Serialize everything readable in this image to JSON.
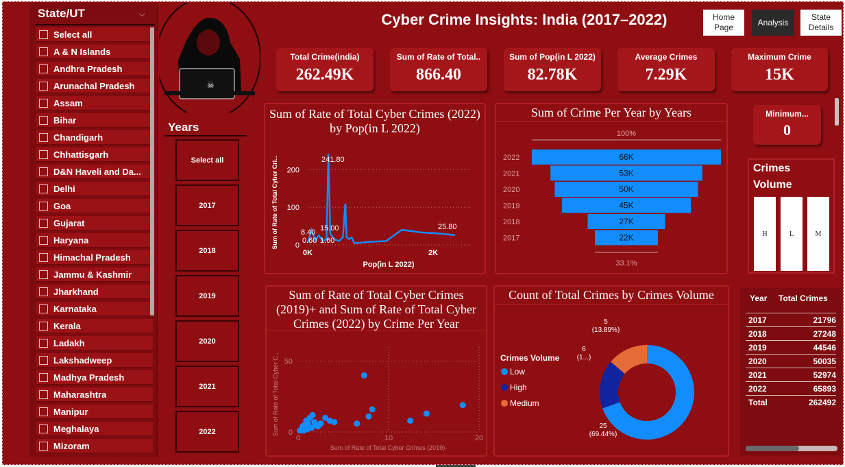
{
  "page": {
    "title": "Cyber Crime Insights: India (2017–2022)"
  },
  "nav": {
    "home": "Home Page",
    "analysis": "Analysis",
    "state_details": "State Details"
  },
  "state_slicer": {
    "title": "State/UT",
    "items": [
      "Select all",
      "A & N Islands",
      "Andhra Pradesh",
      "Arunachal Pradesh",
      "Assam",
      "Bihar",
      "Chandigarh",
      "Chhattisgarh",
      "D&N Haveli and Da...",
      "Delhi",
      "Goa",
      "Gujarat",
      "Haryana",
      "Himachal Pradesh",
      "Jammu & Kashmir",
      "Jharkhand",
      "Karnataka",
      "Kerala",
      "Ladakh",
      "Lakshadweep",
      "Madhya Pradesh",
      "Maharashtra",
      "Manipur",
      "Meghalaya",
      "Mizoram"
    ]
  },
  "year_slicer": {
    "title": "Years",
    "items": [
      "Select all",
      "2017",
      "2018",
      "2019",
      "2020",
      "2021",
      "2022"
    ]
  },
  "kpis": [
    {
      "label": "Total Crime(india)",
      "value": "262.49K"
    },
    {
      "label": "Sum of Rate of Total..",
      "value": "866.40"
    },
    {
      "label": "Sum of Pop(in L 2022)",
      "value": "82.78K"
    },
    {
      "label": "Average Crimes",
      "value": "7.29K"
    },
    {
      "label": "Maximum Crime",
      "value": "15K"
    }
  ],
  "min_kpi": {
    "label": "Minimum...",
    "value": "0"
  },
  "volume_card": {
    "title_line1": "Crimes",
    "title_line2": "Volume",
    "buttons": [
      "H",
      "L",
      "M"
    ]
  },
  "chart_data": [
    {
      "type": "line",
      "title": "Sum of Rate of Total Cyber Crimes (2022) by Pop(in L 2022)",
      "xlabel": "Pop(in L 2022)",
      "ylabel": "Sum of Rate of Total Cyber Cri...",
      "x_ticks": [
        "0K",
        "2K"
      ],
      "y_ticks": [
        "0",
        "100",
        "200"
      ],
      "xlim": [
        0,
        2600
      ],
      "ylim": [
        0,
        250
      ],
      "series": [
        {
          "x": [
            0,
            60,
            120,
            180,
            240,
            300,
            330,
            360,
            420,
            500,
            560,
            600,
            620,
            660,
            700,
            740,
            800,
            1000,
            1250,
            1500,
            1800,
            2100,
            2350
          ],
          "values": [
            5,
            40,
            12,
            25,
            10,
            15,
            241.8,
            30,
            15,
            10,
            20,
            110,
            20,
            15,
            20,
            5,
            5,
            8,
            10,
            40,
            33,
            30,
            25.8
          ]
        }
      ],
      "data_labels": [
        "241.80",
        "15.00",
        "25.80",
        "8.40",
        "0.60",
        "1.60"
      ]
    },
    {
      "type": "bar",
      "subtype": "funnel",
      "title": "Sum of Crime Per Year by Years",
      "categories": [
        "2022",
        "2021",
        "2020",
        "2019",
        "2018",
        "2017"
      ],
      "values": [
        66,
        53,
        50,
        45,
        27,
        22
      ],
      "value_labels": [
        "66K",
        "53K",
        "50K",
        "45K",
        "27K",
        "22K"
      ],
      "top_label": "100%",
      "bottom_label": "33.1%"
    },
    {
      "type": "scatter",
      "title": "Sum of Rate of Total Cyber Crimes (2019)+ and Sum of Rate of Total Cyber Crimes (2022) by Crime Per Year",
      "xlabel": "Sum of Rate of Total Cyber Crimes (2019)-",
      "ylabel": "Sum of Rate of Total Cyber C...",
      "x_ticks": [
        "0",
        "10",
        "20"
      ],
      "y_ticks": [
        "0",
        "50"
      ],
      "xlim": [
        0,
        20
      ],
      "ylim": [
        0,
        60
      ],
      "x": [
        0.2,
        0.4,
        0.5,
        0.6,
        0.7,
        0.8,
        0.9,
        1.0,
        1.1,
        1.2,
        1.3,
        1.5,
        1.6,
        1.8,
        2.0,
        2.2,
        2.5,
        3.0,
        3.5,
        4.0,
        6.5,
        7.3,
        7.8,
        8.2,
        12.4,
        14.2,
        18.2
      ],
      "y": [
        1,
        2,
        4,
        1,
        5,
        3,
        8,
        2,
        6,
        4,
        10,
        3,
        12,
        7,
        5,
        4,
        6,
        10,
        8,
        7,
        6,
        40,
        11,
        16,
        8,
        13,
        19
      ]
    },
    {
      "type": "pie",
      "subtype": "donut",
      "title": "Count of Total Crimes by Crimes Volume",
      "legend_title": "Crimes Volume",
      "legend_position": "left",
      "categories": [
        "Low",
        "High",
        "Medium"
      ],
      "values": [
        25,
        6,
        5
      ],
      "colors": [
        "#118dff",
        "#12239e",
        "#e66c37"
      ],
      "data_labels": [
        {
          "count": "25",
          "pct": "(69.44%)"
        },
        {
          "count": "6",
          "pct": "(1...)"
        },
        {
          "count": "5",
          "pct": "(13.89%)"
        }
      ]
    }
  ],
  "table": {
    "headers": [
      "Year",
      "Total Crimes"
    ],
    "rows": [
      [
        "2017",
        "21796"
      ],
      [
        "2018",
        "27248"
      ],
      [
        "2019",
        "44546"
      ],
      [
        "2020",
        "50035"
      ],
      [
        "2021",
        "52974"
      ],
      [
        "2022",
        "65893"
      ]
    ],
    "total": [
      "Total",
      "262492"
    ]
  },
  "colors": {
    "background": "#8e0e12",
    "accent": "#118dff",
    "kpi": "#a5161b"
  }
}
